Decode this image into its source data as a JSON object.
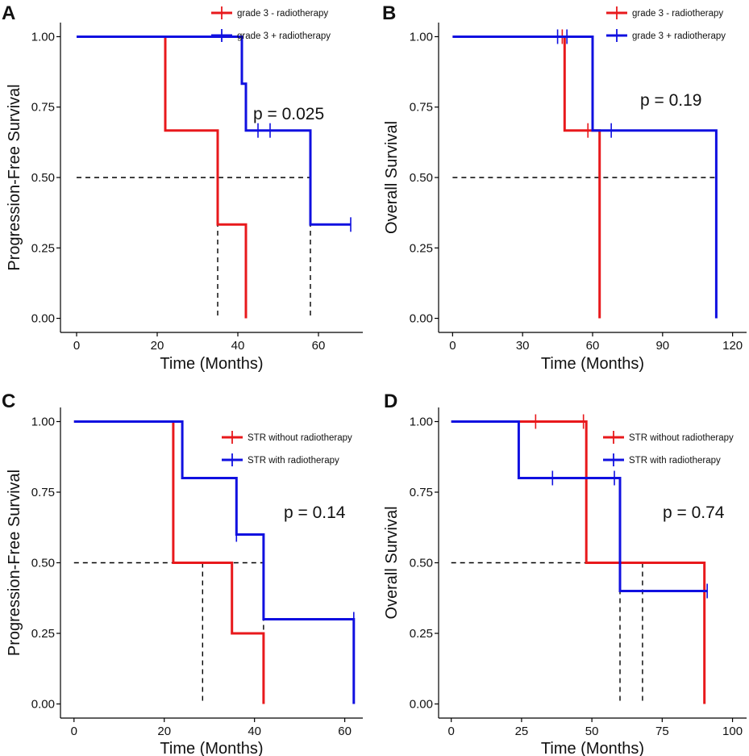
{
  "figure": {
    "panels": [
      {
        "id": "A",
        "letter": "A",
        "p_value": "p = 0.025",
        "xlabel": "Time (Months)",
        "ylabel": "Progression-Free Survival",
        "xlim": [
          -4,
          71
        ],
        "ylim": [
          -0.05,
          1.05
        ],
        "xticks": [
          0,
          20,
          40,
          60
        ],
        "xtick_labels": [
          "0",
          "20",
          "40",
          "60"
        ],
        "yticks": [
          0,
          0.25,
          0.5,
          0.75,
          1
        ],
        "ytick_labels": [
          "0.00",
          "0.25",
          "0.50",
          "0.75",
          "1.00"
        ],
        "median_line": {
          "y": 0.5,
          "x_end": 58,
          "medians": [
            35,
            58
          ]
        },
        "legend": [
          {
            "label": "grade 3  - radiotherapy",
            "color": "#e8191c"
          },
          {
            "label": "grade 3  + radiotherapy",
            "color": "#1010e0"
          }
        ],
        "series": [
          {
            "name": "grade 3  - radiotherapy",
            "color": "#e8191c",
            "steps": [
              [
                0,
                1
              ],
              [
                22,
                1
              ],
              [
                22,
                0.667
              ],
              [
                35,
                0.667
              ],
              [
                35,
                0.333
              ],
              [
                42,
                0.333
              ],
              [
                42,
                0
              ]
            ],
            "censors": []
          },
          {
            "name": "grade 3  + radiotherapy",
            "color": "#1010e0",
            "steps": [
              [
                0,
                1
              ],
              [
                41,
                1
              ],
              [
                41,
                0.833
              ],
              [
                42,
                0.833
              ],
              [
                42,
                0.667
              ],
              [
                58,
                0.667
              ],
              [
                58,
                0.333
              ],
              [
                68,
                0.333
              ]
            ],
            "censors": [
              [
                45,
                0.667
              ],
              [
                48,
                0.667
              ],
              [
                68,
                0.333
              ]
            ]
          }
        ]
      },
      {
        "id": "B",
        "letter": "B",
        "p_value": "p = 0.19",
        "xlabel": "Time (Months)",
        "ylabel": "Overall Survival",
        "xlim": [
          -6,
          126
        ],
        "ylim": [
          -0.05,
          1.05
        ],
        "xticks": [
          0,
          30,
          60,
          90,
          120
        ],
        "xtick_labels": [
          "0",
          "30",
          "60",
          "90",
          "120"
        ],
        "yticks": [
          0,
          0.25,
          0.5,
          0.75,
          1
        ],
        "ytick_labels": [
          "0.00",
          "0.25",
          "0.50",
          "0.75",
          "1.00"
        ],
        "median_line": {
          "y": 0.5,
          "x_end": 113,
          "medians": [
            63,
            113
          ]
        },
        "legend": [
          {
            "label": "grade 3  - radiotherapy",
            "color": "#e8191c"
          },
          {
            "label": "grade 3  + radiotherapy",
            "color": "#1010e0"
          }
        ],
        "series": [
          {
            "name": "grade 3  - radiotherapy",
            "color": "#e8191c",
            "steps": [
              [
                0,
                1
              ],
              [
                48,
                1
              ],
              [
                48,
                0.667
              ],
              [
                63,
                0.667
              ],
              [
                63,
                0
              ]
            ],
            "censors": [
              [
                47,
                1
              ],
              [
                58,
                0.667
              ]
            ]
          },
          {
            "name": "grade 3  + radiotherapy",
            "color": "#1010e0",
            "steps": [
              [
                0,
                1
              ],
              [
                60,
                1
              ],
              [
                60,
                0.667
              ],
              [
                113,
                0.667
              ],
              [
                113,
                0
              ]
            ],
            "censors": [
              [
                45,
                1
              ],
              [
                49,
                1
              ],
              [
                68,
                0.667
              ]
            ]
          }
        ]
      },
      {
        "id": "C",
        "letter": "C",
        "p_value": "p = 0.14",
        "xlabel": "Time (Months)",
        "ylabel": "Progression-Free Survival",
        "xlim": [
          -3,
          64
        ],
        "ylim": [
          -0.05,
          1.05
        ],
        "xticks": [
          0,
          20,
          40,
          60
        ],
        "xtick_labels": [
          "0",
          "20",
          "40",
          "60"
        ],
        "yticks": [
          0,
          0.25,
          0.5,
          0.75,
          1
        ],
        "ytick_labels": [
          "0.00",
          "0.25",
          "0.50",
          "0.75",
          "1.00"
        ],
        "median_line": {
          "y": 0.5,
          "x_end": 42,
          "medians": [
            28.5,
            42
          ]
        },
        "legend": [
          {
            "label": "STR without radiotherapy",
            "color": "#e8191c"
          },
          {
            "label": "STR with radiotherapy",
            "color": "#1010e0"
          }
        ],
        "series": [
          {
            "name": "STR without radiotherapy",
            "color": "#e8191c",
            "steps": [
              [
                0,
                1
              ],
              [
                22,
                1
              ],
              [
                22,
                0.5
              ],
              [
                35,
                0.5
              ],
              [
                35,
                0.25
              ],
              [
                42,
                0.25
              ],
              [
                42,
                0
              ]
            ],
            "censors": []
          },
          {
            "name": "STR with radiotherapy",
            "color": "#1010e0",
            "steps": [
              [
                0,
                1
              ],
              [
                24,
                1
              ],
              [
                24,
                0.8
              ],
              [
                36,
                0.8
              ],
              [
                36,
                0.6
              ],
              [
                42,
                0.6
              ],
              [
                42,
                0.3
              ],
              [
                62,
                0.3
              ],
              [
                62,
                0
              ]
            ],
            "censors": [
              [
                36,
                0.6
              ],
              [
                62,
                0.3
              ]
            ]
          }
        ]
      },
      {
        "id": "D",
        "letter": "D",
        "p_value": "p = 0.74",
        "xlabel": "Time (Months)",
        "ylabel": "Overall Survival",
        "xlim": [
          -4.5,
          105
        ],
        "ylim": [
          -0.05,
          1.05
        ],
        "xticks": [
          0,
          25,
          50,
          75,
          100
        ],
        "xtick_labels": [
          "0",
          "25",
          "50",
          "75",
          "100"
        ],
        "yticks": [
          0,
          0.25,
          0.5,
          0.75,
          1
        ],
        "ytick_labels": [
          "0.00",
          "0.25",
          "0.50",
          "0.75",
          "1.00"
        ],
        "median_line": {
          "y": 0.5,
          "x_end": 68,
          "medians": [
            60,
            68
          ]
        },
        "legend": [
          {
            "label": "STR without radiotherapy",
            "color": "#e8191c"
          },
          {
            "label": "STR with radiotherapy",
            "color": "#1010e0"
          }
        ],
        "series": [
          {
            "name": "STR without radiotherapy",
            "color": "#e8191c",
            "steps": [
              [
                0,
                1
              ],
              [
                48,
                1
              ],
              [
                48,
                0.5
              ],
              [
                90,
                0.5
              ],
              [
                90,
                0
              ]
            ],
            "censors": [
              [
                30,
                1
              ],
              [
                47,
                1
              ]
            ]
          },
          {
            "name": "STR with radiotherapy",
            "color": "#1010e0",
            "steps": [
              [
                0,
                1
              ],
              [
                24,
                1
              ],
              [
                24,
                0.8
              ],
              [
                60,
                0.8
              ],
              [
                60,
                0.4
              ],
              [
                91,
                0.4
              ]
            ],
            "censors": [
              [
                36,
                0.8
              ],
              [
                58,
                0.8
              ],
              [
                91,
                0.4
              ]
            ]
          }
        ]
      }
    ]
  },
  "chart_data": [
    {
      "type": "line",
      "panel": "A",
      "title": "",
      "xlabel": "Time (Months)",
      "ylabel": "Progression-Free Survival",
      "ylim": [
        0,
        1
      ],
      "annotation": "p = 0.025",
      "series": [
        {
          "name": "grade 3  - radiotherapy",
          "x": [
            0,
            22,
            35,
            42
          ],
          "y": [
            1,
            0.667,
            0.333,
            0
          ]
        },
        {
          "name": "grade 3  + radiotherapy",
          "x": [
            0,
            41,
            42,
            58,
            68
          ],
          "y": [
            1,
            0.833,
            0.667,
            0.333,
            0.333
          ]
        }
      ]
    },
    {
      "type": "line",
      "panel": "B",
      "title": "",
      "xlabel": "Time (Months)",
      "ylabel": "Overall Survival",
      "ylim": [
        0,
        1
      ],
      "annotation": "p = 0.19",
      "series": [
        {
          "name": "grade 3  - radiotherapy",
          "x": [
            0,
            48,
            63
          ],
          "y": [
            1,
            0.667,
            0
          ]
        },
        {
          "name": "grade 3  + radiotherapy",
          "x": [
            0,
            60,
            113
          ],
          "y": [
            1,
            0.667,
            0
          ]
        }
      ]
    },
    {
      "type": "line",
      "panel": "C",
      "title": "",
      "xlabel": "Time (Months)",
      "ylabel": "Progression-Free Survival",
      "ylim": [
        0,
        1
      ],
      "annotation": "p = 0.14",
      "series": [
        {
          "name": "STR without radiotherapy",
          "x": [
            0,
            22,
            35,
            42
          ],
          "y": [
            1,
            0.5,
            0.25,
            0
          ]
        },
        {
          "name": "STR with radiotherapy",
          "x": [
            0,
            24,
            36,
            42,
            62
          ],
          "y": [
            1,
            0.8,
            0.6,
            0.3,
            0
          ]
        }
      ]
    },
    {
      "type": "line",
      "panel": "D",
      "title": "",
      "xlabel": "Time (Months)",
      "ylabel": "Overall Survival",
      "ylim": [
        0,
        1
      ],
      "annotation": "p = 0.74",
      "series": [
        {
          "name": "STR without radiotherapy",
          "x": [
            0,
            48,
            90
          ],
          "y": [
            1,
            0.5,
            0
          ]
        },
        {
          "name": "STR with radiotherapy",
          "x": [
            0,
            24,
            60,
            91
          ],
          "y": [
            1,
            0.8,
            0.4,
            0.4
          ]
        }
      ]
    }
  ]
}
